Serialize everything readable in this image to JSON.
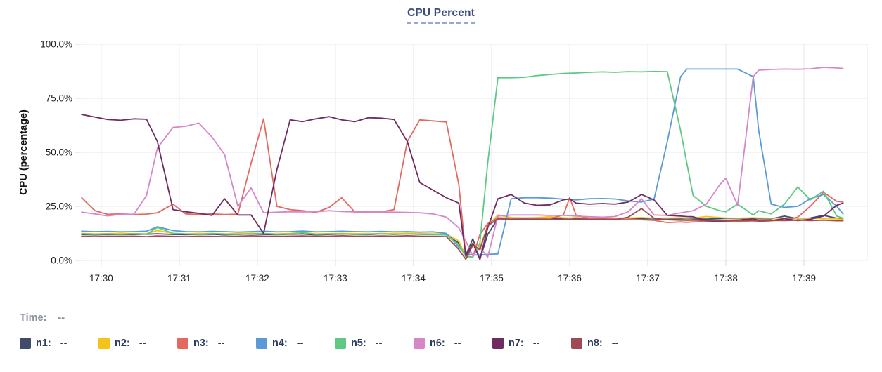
{
  "title": "CPU Percent",
  "time_row": {
    "label": "Time:",
    "value": "--"
  },
  "legend_items": [
    {
      "name": "n1",
      "label": "n1:",
      "value": "--",
      "color": "#3f4d68"
    },
    {
      "name": "n2",
      "label": "n2:",
      "value": "--",
      "color": "#f3c317"
    },
    {
      "name": "n3",
      "label": "n3:",
      "value": "--",
      "color": "#e4695e"
    },
    {
      "name": "n4",
      "label": "n4:",
      "value": "--",
      "color": "#5b9bd5"
    },
    {
      "name": "n5",
      "label": "n5:",
      "value": "--",
      "color": "#5dc983"
    },
    {
      "name": "n6",
      "label": "n6:",
      "value": "--",
      "color": "#d687c8"
    },
    {
      "name": "n7",
      "label": "n7:",
      "value": "--",
      "color": "#6e2c62"
    },
    {
      "name": "n8",
      "label": "n8:",
      "value": "--",
      "color": "#a04a58"
    }
  ],
  "colors": {
    "title": "#3e4e7a",
    "grid": "#e7e7e9",
    "tick": "#d9d9db",
    "axis_text": "#202124",
    "legend_text": "#2d3b5e",
    "time_text": "#8b909a"
  },
  "chart_data": {
    "type": "line",
    "title": "CPU Percent",
    "ylabel": "CPU (percentage)",
    "xlabel": "",
    "grid": true,
    "legend_position": "bottom",
    "ylim": [
      0,
      100
    ],
    "y_ticks": [
      {
        "label": "100.0%",
        "value": 100
      },
      {
        "label": "75.0%",
        "value": 75
      },
      {
        "label": "50.0%",
        "value": 50
      },
      {
        "label": "25.0%",
        "value": 25
      },
      {
        "label": "0.0%",
        "value": 0
      }
    ],
    "x_tick_labels": [
      "17:30",
      "17:31",
      "17:32",
      "17:33",
      "17:34",
      "17:35",
      "17:36",
      "17:37",
      "17:38",
      "17:39"
    ],
    "x_tick_minutes": [
      0,
      1,
      2,
      3,
      4,
      5,
      6,
      7,
      8,
      9
    ],
    "x_unit": "minutes after 17:30",
    "x": [
      -0.25,
      -0.08,
      0.08,
      0.25,
      0.42,
      0.58,
      0.72,
      0.92,
      1.08,
      1.25,
      1.42,
      1.58,
      1.75,
      1.92,
      2.08,
      2.25,
      2.42,
      2.58,
      2.75,
      2.92,
      3.08,
      3.25,
      3.42,
      3.58,
      3.75,
      3.92,
      4.08,
      4.25,
      4.42,
      4.58,
      4.67,
      4.76,
      4.85,
      4.95,
      5.08,
      5.25,
      5.42,
      5.58,
      5.75,
      5.92,
      6.0,
      6.08,
      6.25,
      6.42,
      6.58,
      6.75,
      6.92,
      7.08,
      7.25,
      7.42,
      7.5,
      7.58,
      7.75,
      7.92,
      8.0,
      8.15,
      8.35,
      8.42,
      8.58,
      8.75,
      8.92,
      9.08,
      9.25,
      9.42,
      9.5
    ],
    "series": [
      {
        "name": "n1",
        "color": "#3f4d68",
        "values": [
          12,
          11.8,
          12,
          11.9,
          12,
          12.1,
          12.3,
          12,
          11.9,
          12,
          12.1,
          11.8,
          12,
          12.2,
          12,
          11.9,
          12.1,
          12.2,
          11.8,
          12,
          12.2,
          12,
          11.9,
          12.3,
          12,
          12.4,
          12.2,
          12,
          11.8,
          8,
          2.5,
          10,
          0.5,
          12,
          19.3,
          19.6,
          19.2,
          19.4,
          19.3,
          19.2,
          19.3,
          19.4,
          19.2,
          18.8,
          19.3,
          19.1,
          19.3,
          19.2,
          19,
          19.2,
          19.3,
          19.2,
          19.1,
          19.3,
          19.4,
          19.3,
          19.2,
          19.3,
          19.2,
          20.5,
          19.3,
          19.6,
          20.8,
          19.5,
          19.2
        ]
      },
      {
        "name": "n2",
        "color": "#f3c317",
        "values": [
          12.5,
          12.3,
          12.4,
          12.5,
          12.4,
          12.3,
          13.8,
          12.5,
          12.3,
          12.4,
          12.5,
          12.3,
          12.4,
          12.6,
          12.4,
          12.3,
          12.5,
          12.9,
          12.3,
          12.4,
          12.5,
          12.4,
          12.3,
          12.5,
          12.4,
          12.6,
          12.4,
          12.3,
          12.2,
          9,
          1.5,
          8,
          6,
          16,
          21,
          19.8,
          19.6,
          19.8,
          20.2,
          19.7,
          19.6,
          19.8,
          19.6,
          19.7,
          19.5,
          19.6,
          19.8,
          19.5,
          19.6,
          19.7,
          19.5,
          19.6,
          20.3,
          19.8,
          19.6,
          19.5,
          19.7,
          19.6,
          19.5,
          19.6,
          19.4,
          19.5,
          19.3,
          19.2,
          19
        ]
      },
      {
        "name": "n3",
        "color": "#e4695e",
        "values": [
          29,
          23,
          21.3,
          21.5,
          21.2,
          21.4,
          22,
          26,
          21.5,
          21.3,
          21.5,
          21.2,
          21.4,
          45,
          65.5,
          25,
          23.5,
          23,
          22.2,
          24.5,
          29,
          22.3,
          22.4,
          22.4,
          23.5,
          55,
          65,
          64.5,
          64,
          35,
          2,
          1.5,
          12,
          17,
          19.7,
          19.5,
          19.6,
          19.5,
          19.4,
          21,
          29,
          21,
          19.4,
          19.3,
          19.2,
          19,
          18.8,
          18.5,
          17.5,
          17.8,
          17.6,
          17.8,
          18,
          17.8,
          18,
          18,
          18.2,
          18,
          18.3,
          18.5,
          20,
          25,
          31.5,
          27.3,
          27
        ]
      },
      {
        "name": "n4",
        "color": "#5b9bd5",
        "values": [
          13.5,
          13.3,
          13.4,
          13.2,
          13.3,
          13.5,
          15.6,
          13.8,
          13.3,
          13.2,
          13.4,
          13.3,
          13.1,
          13.3,
          13.5,
          13.2,
          13.3,
          13.6,
          13.2,
          13.3,
          13.5,
          13.3,
          13.2,
          13.4,
          13.2,
          13.3,
          13.1,
          13.2,
          12.5,
          6,
          3,
          2.5,
          2.5,
          2.8,
          3,
          28.5,
          29,
          29,
          28.8,
          28.3,
          28.2,
          28,
          28.5,
          28.6,
          28.4,
          27.5,
          27,
          28.3,
          55,
          85,
          88.5,
          88.5,
          88.5,
          88.5,
          88.5,
          88.5,
          85,
          60,
          26,
          24.5,
          25,
          28.5,
          30.5,
          25,
          21.5
        ]
      },
      {
        "name": "n5",
        "color": "#5dc983",
        "values": [
          12.3,
          12,
          12.2,
          12,
          12.3,
          12.1,
          15.2,
          12.5,
          12.2,
          12,
          12.4,
          12.1,
          12,
          12.3,
          12.5,
          12,
          12.2,
          12.8,
          12,
          12.2,
          12.3,
          12,
          12.1,
          12.3,
          12,
          12.2,
          12,
          11.9,
          11.8,
          7,
          1.8,
          1.5,
          8,
          45,
          84.5,
          84.5,
          84.7,
          85.5,
          86,
          86.5,
          86.6,
          86.7,
          87,
          87.2,
          87,
          87.3,
          87.2,
          87.4,
          87.3,
          60,
          45,
          30,
          25,
          23,
          22.5,
          26,
          21,
          23,
          21.5,
          26,
          34,
          28,
          32,
          20.5,
          19.5
        ]
      },
      {
        "name": "n6",
        "color": "#d687c8",
        "values": [
          22.3,
          21.5,
          20.6,
          21.3,
          21.4,
          30,
          52,
          61.5,
          62,
          63.5,
          57,
          49,
          25,
          33.5,
          22,
          22.3,
          22.5,
          22.4,
          22.5,
          23,
          22.6,
          22.4,
          22.5,
          22.4,
          22.3,
          22.2,
          22,
          21.5,
          20,
          15,
          9,
          2,
          6,
          1.5,
          20.5,
          21,
          21,
          21,
          20.8,
          20.8,
          20.7,
          20.5,
          20.2,
          20,
          20.3,
          22.5,
          28.5,
          21,
          20.8,
          22,
          22.5,
          23,
          26,
          35,
          38,
          25.5,
          85,
          88,
          88.3,
          88.5,
          88.4,
          88.6,
          89.3,
          89,
          88.8
        ]
      },
      {
        "name": "n7",
        "color": "#6e2c62",
        "values": [
          67.5,
          66.3,
          65.2,
          64.8,
          65.5,
          65.3,
          55,
          23.5,
          22.5,
          21.8,
          20.8,
          28.5,
          21,
          21,
          12.5,
          42,
          65,
          64.2,
          65.5,
          66.5,
          65,
          64.2,
          66,
          65.8,
          65.2,
          55,
          36,
          32.5,
          29,
          26.5,
          2,
          8,
          0.5,
          15,
          28.5,
          30.5,
          26.5,
          25.5,
          25.7,
          28,
          28.5,
          26.5,
          26,
          26.3,
          26,
          27,
          30.5,
          28,
          20.8,
          20.5,
          20.3,
          20.2,
          18.3,
          18,
          18.2,
          18.4,
          19.3,
          18.2,
          18.4,
          19.3,
          18.4,
          19,
          20.5,
          25.5,
          26.5
        ]
      },
      {
        "name": "n8",
        "color": "#a04a58",
        "values": [
          11.2,
          11,
          11.2,
          11.1,
          11.2,
          11,
          11.3,
          11.1,
          11,
          11.2,
          11.1,
          11,
          11.2,
          11.4,
          11.2,
          11.1,
          11.2,
          11.3,
          11.1,
          11.2,
          11.4,
          11.2,
          11.1,
          11.3,
          11.2,
          11.4,
          11.2,
          11.1,
          11,
          5,
          0.5,
          7,
          5,
          16,
          19.2,
          19,
          19.1,
          19,
          18.9,
          19,
          19,
          19.1,
          18.9,
          19,
          18.8,
          20,
          24,
          19.5,
          18.8,
          18.6,
          18.5,
          18.6,
          18.4,
          18.3,
          18.4,
          18.3,
          18.5,
          18.3,
          18.5,
          18.4,
          18.6,
          18.4,
          18.6,
          18.3,
          18.3
        ]
      }
    ]
  }
}
